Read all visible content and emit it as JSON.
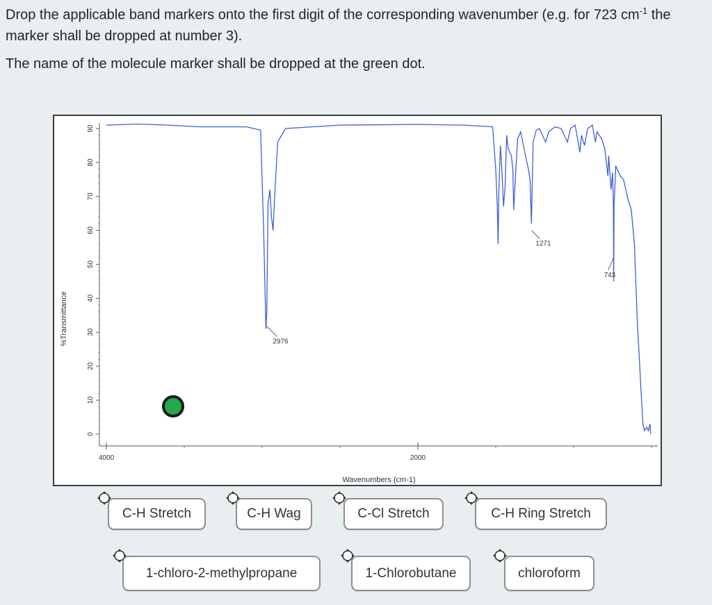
{
  "instructions": {
    "line1_main": "Drop the applicable band markers onto the first digit of the corresponding wavenumber (e.g.  for 723 cm",
    "line1_sup": "-1",
    "line1_tail": " the marker shall be dropped at number 3).",
    "line2": "The name of the molecule marker shall be dropped at the green dot."
  },
  "chart": {
    "ylabel": "%Transmittance",
    "xlabel": "Wavenumbers (cm-1)",
    "y_ticks": [
      "90",
      "80",
      "70",
      "60",
      "50",
      "40",
      "30",
      "20",
      "10",
      "0"
    ],
    "x_ticks": [
      "4000",
      "2000"
    ],
    "annotations": [
      "2976",
      "1271",
      "743"
    ],
    "line_color": "#3f5ed6"
  },
  "chart_data": {
    "type": "line",
    "title": "",
    "xlabel": "Wavenumbers (cm-1)",
    "ylabel": "%Transmittance",
    "xlim": [
      4000,
      400
    ],
    "ylim": [
      0,
      90
    ],
    "grid": false,
    "annotations": [
      {
        "label": "2976",
        "x": 2976,
        "y": 32
      },
      {
        "label": "1271",
        "x": 1271,
        "y": 60
      },
      {
        "label": "743",
        "x": 743,
        "y": 52
      }
    ],
    "series": [
      {
        "points": [
          [
            4000,
            91
          ],
          [
            3800,
            91.3
          ],
          [
            3600,
            91
          ],
          [
            3400,
            90.5
          ],
          [
            3100,
            90.5
          ],
          [
            3010,
            89.5
          ],
          [
            2990,
            60
          ],
          [
            2976,
            31
          ],
          [
            2970,
            36
          ],
          [
            2962,
            68
          ],
          [
            2950,
            72
          ],
          [
            2940,
            64
          ],
          [
            2930,
            60
          ],
          [
            2915,
            74
          ],
          [
            2900,
            86
          ],
          [
            2850,
            90
          ],
          [
            2500,
            91
          ],
          [
            2000,
            91.2
          ],
          [
            1700,
            91
          ],
          [
            1520,
            90.5
          ],
          [
            1500,
            78
          ],
          [
            1490,
            67
          ],
          [
            1485,
            56
          ],
          [
            1480,
            72
          ],
          [
            1470,
            85
          ],
          [
            1460,
            77
          ],
          [
            1450,
            67
          ],
          [
            1440,
            73
          ],
          [
            1430,
            88
          ],
          [
            1420,
            84
          ],
          [
            1400,
            82
          ],
          [
            1390,
            78
          ],
          [
            1385,
            66
          ],
          [
            1378,
            72
          ],
          [
            1360,
            87
          ],
          [
            1340,
            89
          ],
          [
            1300,
            80
          ],
          [
            1290,
            78
          ],
          [
            1280,
            75
          ],
          [
            1271,
            62
          ],
          [
            1260,
            86
          ],
          [
            1240,
            89.5
          ],
          [
            1220,
            90
          ],
          [
            1180,
            86
          ],
          [
            1160,
            89
          ],
          [
            1120,
            90.5
          ],
          [
            1080,
            90
          ],
          [
            1040,
            86
          ],
          [
            1020,
            90
          ],
          [
            990,
            91
          ],
          [
            960,
            83
          ],
          [
            950,
            88
          ],
          [
            930,
            85
          ],
          [
            910,
            90
          ],
          [
            880,
            91
          ],
          [
            860,
            86
          ],
          [
            850,
            89
          ],
          [
            820,
            87
          ],
          [
            800,
            84
          ],
          [
            780,
            76
          ],
          [
            775,
            82
          ],
          [
            760,
            72
          ],
          [
            750,
            77
          ],
          [
            745,
            68
          ],
          [
            743,
            45
          ],
          [
            740,
            68
          ],
          [
            735,
            73
          ],
          [
            730,
            79
          ],
          [
            720,
            78
          ],
          [
            700,
            76
          ],
          [
            680,
            75
          ],
          [
            650,
            69
          ],
          [
            630,
            66
          ],
          [
            610,
            56
          ],
          [
            600,
            44
          ],
          [
            590,
            32
          ],
          [
            580,
            24
          ],
          [
            570,
            15
          ],
          [
            560,
            7
          ],
          [
            555,
            3
          ],
          [
            545,
            1
          ],
          [
            530,
            2
          ],
          [
            520,
            1
          ],
          [
            510,
            3
          ],
          [
            505,
            0
          ]
        ]
      }
    ]
  },
  "markers": {
    "bands": [
      "C-H Stretch",
      "C-H Wag",
      "C-Cl Stretch",
      "C-H Ring Stretch"
    ],
    "molecules": [
      "1-chloro-2-methylpropane",
      "1-Chlorobutane",
      "chloroform"
    ]
  }
}
